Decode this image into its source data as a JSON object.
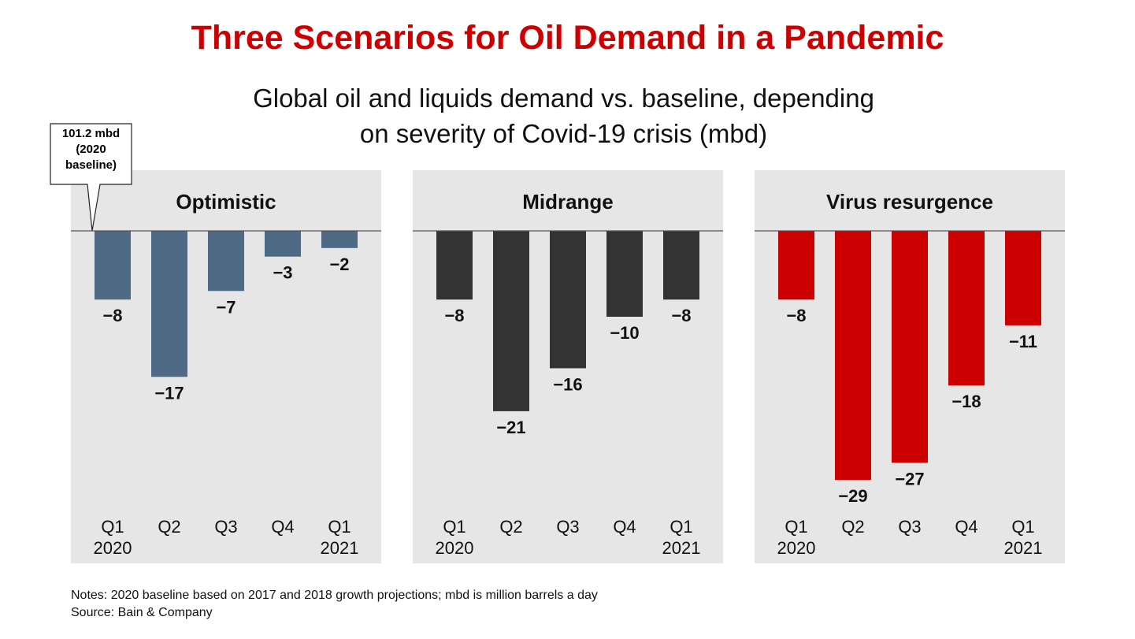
{
  "title": "Three Scenarios for Oil Demand in a Pandemic",
  "subtitle": "Global oil and liquids demand vs. baseline, depending\non severity of Covid-19 crisis (mbd)",
  "notes": "Notes: 2020 baseline based on 2017 and 2018 growth projections; mbd is million barrels a day",
  "source": "Source: Bain & Company",
  "chart_data": [
    {
      "type": "bar",
      "title": "Optimistic",
      "annotation": "101.2 mbd\n(2020\nbaseline)",
      "categories": [
        "Q1 2020",
        "Q2",
        "Q3",
        "Q4",
        "Q1 2021"
      ],
      "values": [
        -8,
        -17,
        -7,
        -3,
        -2
      ],
      "value_labels": [
        "−8",
        "−17",
        "−7",
        "−3",
        "−2"
      ],
      "color": "#4f6a85",
      "ylim": [
        -30,
        0
      ]
    },
    {
      "type": "bar",
      "title": "Midrange",
      "categories": [
        "Q1 2020",
        "Q2",
        "Q3",
        "Q4",
        "Q1 2021"
      ],
      "values": [
        -8,
        -21,
        -16,
        -10,
        -8
      ],
      "value_labels": [
        "−8",
        "−21",
        "−16",
        "−10",
        "−8"
      ],
      "color": "#333333",
      "ylim": [
        -30,
        0
      ]
    },
    {
      "type": "bar",
      "title": "Virus resurgence",
      "categories": [
        "Q1 2020",
        "Q2",
        "Q3",
        "Q4",
        "Q1 2021"
      ],
      "values": [
        -8,
        -29,
        -27,
        -18,
        -11
      ],
      "value_labels": [
        "−8",
        "−29",
        "−27",
        "−18",
        "−11"
      ],
      "color": "#cc0000",
      "ylim": [
        -30,
        0
      ]
    }
  ]
}
